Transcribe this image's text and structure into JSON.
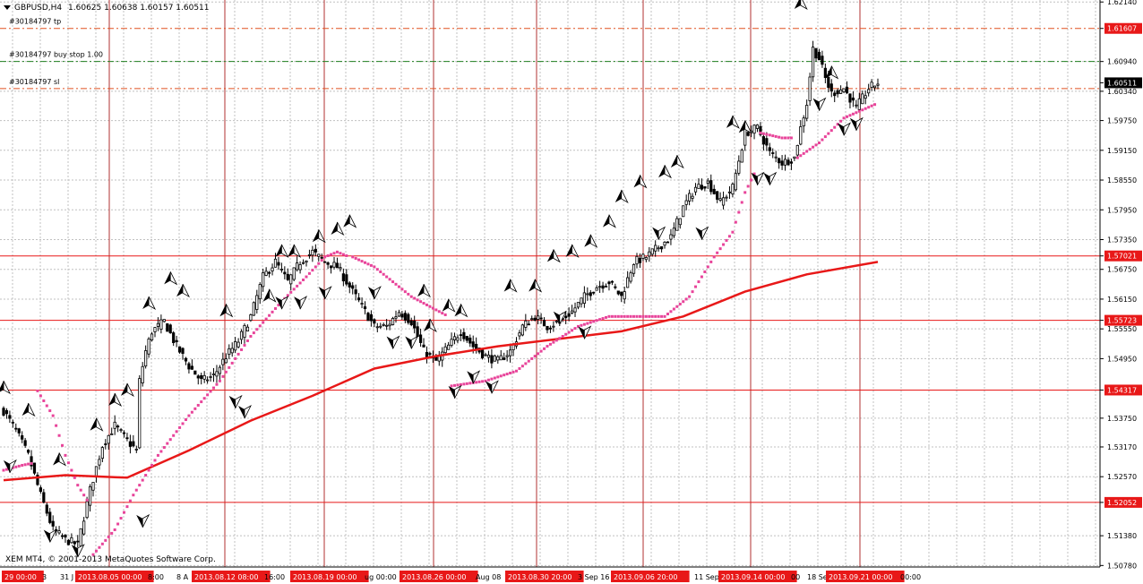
{
  "window": {
    "symbol": "GBPUSD,H4",
    "ohlc": "1.60625 1.60638 1.60157 1.60511",
    "copyright": "XEM MT4, © 2001-2013 MetaQuotes Software Corp."
  },
  "colors": {
    "background": "#ffffff",
    "grid": "#c0c0c0",
    "candle": "#000000",
    "ma": "#e81818",
    "sar": "#e8449a",
    "level_line": "#e81818",
    "vertical_marker": "#b03030",
    "tag_bg": "#e81818",
    "tp_line": "#e05020",
    "buy_line": "#208020",
    "sl_line": "#e05020",
    "price_tag_bg": "#000000"
  },
  "orders": [
    {
      "label": "#30184797 tp",
      "price": 1.61607,
      "style": "tp"
    },
    {
      "label": "#30184797 buy stop 1.00",
      "price": 1.6094,
      "style": "buy"
    },
    {
      "label": "#30184797 sl",
      "price": 1.60395,
      "style": "sl"
    }
  ],
  "chart_data": {
    "type": "candlestick",
    "y_ticks": [
      "1.62140",
      "1.61607",
      "1.60940",
      "1.60511",
      "1.60340",
      "1.59750",
      "1.59150",
      "1.58550",
      "1.57950",
      "1.57350",
      "1.57021",
      "1.56750",
      "1.56150",
      "1.55723",
      "1.55550",
      "1.54950",
      "1.54317",
      "1.53750",
      "1.53170",
      "1.52570",
      "1.52052",
      "1.51380",
      "1.50780"
    ],
    "ylim": [
      1.5075,
      1.6218
    ],
    "current_price": 1.60511,
    "highlight_prices": [
      1.61607,
      1.60511,
      1.57021,
      1.55723,
      1.54317,
      1.52052
    ],
    "level_lines": [
      1.57021,
      1.55723,
      1.54317,
      1.52052
    ],
    "x_labels": [
      {
        "text": "29 00:00",
        "highlight": true
      },
      {
        "text": "3",
        "highlight": false
      },
      {
        "text": "31 J",
        "highlight": false
      },
      {
        "text": "2013.08.05 00:00",
        "highlight": true
      },
      {
        "text": "8:00",
        "highlight": false
      },
      {
        "text": "8 A",
        "highlight": false
      },
      {
        "text": "2013.08.12 08:00",
        "highlight": true
      },
      {
        "text": "16:00",
        "highlight": false
      },
      {
        "text": "2013.08.19 00:00",
        "highlight": true
      },
      {
        "text": "ug 00:00",
        "highlight": false
      },
      {
        "text": "2013.08.26 00:00",
        "highlight": true
      },
      {
        "text": "Aug 08",
        "highlight": false
      },
      {
        "text": "2013.08.30 20:00",
        "highlight": true
      },
      {
        "text": "3 Sep 16",
        "highlight": false
      },
      {
        "text": "2013.09.06 20:00",
        "highlight": true
      },
      {
        "text": "11 Sep",
        "highlight": false
      },
      {
        "text": "2013.09.14 00:00",
        "highlight": true
      },
      {
        "text": "00",
        "highlight": false
      },
      {
        "text": "18 Se",
        "highlight": false
      },
      {
        "text": "2013.09.21 00:00",
        "highlight": true
      },
      {
        "text": "00:00",
        "highlight": false
      }
    ],
    "path_anchors": [
      [
        0,
        1.539
      ],
      [
        4,
        1.535
      ],
      [
        8,
        1.53
      ],
      [
        12,
        1.522
      ],
      [
        16,
        1.515
      ],
      [
        20,
        1.513
      ],
      [
        24,
        1.512
      ],
      [
        28,
        1.523
      ],
      [
        32,
        1.532
      ],
      [
        36,
        1.536
      ],
      [
        40,
        1.533
      ],
      [
        43,
        1.531
      ],
      [
        44,
        1.545
      ],
      [
        46,
        1.551
      ],
      [
        48,
        1.555
      ],
      [
        52,
        1.557
      ],
      [
        56,
        1.552
      ],
      [
        60,
        1.548
      ],
      [
        64,
        1.545
      ],
      [
        68,
        1.546
      ],
      [
        72,
        1.55
      ],
      [
        76,
        1.553
      ],
      [
        80,
        1.558
      ],
      [
        84,
        1.566
      ],
      [
        88,
        1.569
      ],
      [
        92,
        1.565
      ],
      [
        96,
        1.569
      ],
      [
        100,
        1.571
      ],
      [
        104,
        1.569
      ],
      [
        108,
        1.568
      ],
      [
        112,
        1.564
      ],
      [
        116,
        1.56
      ],
      [
        120,
        1.556
      ],
      [
        124,
        1.556
      ],
      [
        128,
        1.559
      ],
      [
        132,
        1.557
      ],
      [
        136,
        1.551
      ],
      [
        140,
        1.549
      ],
      [
        144,
        1.552
      ],
      [
        148,
        1.555
      ],
      [
        152,
        1.552
      ],
      [
        156,
        1.55
      ],
      [
        160,
        1.549
      ],
      [
        164,
        1.551
      ],
      [
        168,
        1.556
      ],
      [
        172,
        1.558
      ],
      [
        176,
        1.556
      ],
      [
        180,
        1.557
      ],
      [
        184,
        1.559
      ],
      [
        188,
        1.562
      ],
      [
        192,
        1.564
      ],
      [
        196,
        1.565
      ],
      [
        200,
        1.562
      ],
      [
        204,
        1.569
      ],
      [
        208,
        1.57
      ],
      [
        212,
        1.572
      ],
      [
        216,
        1.574
      ],
      [
        220,
        1.58
      ],
      [
        224,
        1.584
      ],
      [
        228,
        1.585
      ],
      [
        232,
        1.581
      ],
      [
        236,
        1.584
      ],
      [
        240,
        1.595
      ],
      [
        244,
        1.596
      ],
      [
        248,
        1.591
      ],
      [
        252,
        1.589
      ],
      [
        256,
        1.59
      ],
      [
        258,
        1.596
      ],
      [
        260,
        1.601
      ],
      [
        262,
        1.612
      ],
      [
        264,
        1.61
      ],
      [
        266,
        1.606
      ],
      [
        268,
        1.603
      ],
      [
        272,
        1.604
      ],
      [
        276,
        1.6
      ],
      [
        280,
        1.604
      ],
      [
        283,
        1.6051
      ]
    ],
    "ma_anchors": [
      [
        0,
        1.525
      ],
      [
        20,
        1.526
      ],
      [
        40,
        1.5255
      ],
      [
        60,
        1.531
      ],
      [
        80,
        1.537
      ],
      [
        100,
        1.542
      ],
      [
        120,
        1.5475
      ],
      [
        140,
        1.55
      ],
      [
        160,
        1.552
      ],
      [
        180,
        1.5535
      ],
      [
        200,
        1.555
      ],
      [
        220,
        1.558
      ],
      [
        240,
        1.563
      ],
      [
        260,
        1.5665
      ],
      [
        283,
        1.569
      ]
    ],
    "sar_segments": [
      {
        "dir": "below",
        "points": [
          [
            0,
            1.527
          ],
          [
            6,
            1.528
          ],
          [
            10,
            1.5285
          ]
        ]
      },
      {
        "dir": "above",
        "points": [
          [
            11,
            1.543
          ],
          [
            16,
            1.538
          ],
          [
            20,
            1.53
          ],
          [
            24,
            1.524
          ],
          [
            28,
            1.52
          ]
        ]
      },
      {
        "dir": "below",
        "points": [
          [
            29,
            1.51
          ],
          [
            36,
            1.515
          ],
          [
            42,
            1.522
          ],
          [
            50,
            1.53
          ],
          [
            60,
            1.538
          ],
          [
            70,
            1.545
          ],
          [
            80,
            1.554
          ],
          [
            90,
            1.561
          ],
          [
            98,
            1.566
          ],
          [
            104,
            1.57
          ],
          [
            108,
            1.571
          ],
          [
            112,
            1.57
          ]
        ]
      },
      {
        "dir": "above",
        "points": [
          [
            113,
            1.57
          ],
          [
            120,
            1.568
          ],
          [
            126,
            1.565
          ],
          [
            132,
            1.562
          ],
          [
            138,
            1.56
          ],
          [
            144,
            1.558
          ]
        ]
      },
      {
        "dir": "below",
        "points": [
          [
            145,
            1.544
          ],
          [
            156,
            1.545
          ],
          [
            166,
            1.547
          ],
          [
            176,
            1.552
          ],
          [
            186,
            1.556
          ],
          [
            196,
            1.558
          ],
          [
            206,
            1.558
          ],
          [
            214,
            1.558
          ],
          [
            222,
            1.562
          ],
          [
            230,
            1.57
          ],
          [
            236,
            1.575
          ],
          [
            240,
            1.583
          ],
          [
            244,
            1.588
          ]
        ]
      },
      {
        "dir": "above",
        "points": [
          [
            245,
            1.595
          ],
          [
            252,
            1.594
          ],
          [
            256,
            1.594
          ]
        ]
      },
      {
        "dir": "below",
        "points": [
          [
            257,
            1.59
          ],
          [
            264,
            1.593
          ],
          [
            272,
            1.598
          ],
          [
            283,
            1.601
          ]
        ]
      }
    ],
    "fractals": [
      [
        0,
        1.5425,
        "up"
      ],
      [
        8,
        1.538,
        "up"
      ],
      [
        2,
        1.529,
        "down"
      ],
      [
        15,
        1.515,
        "down"
      ],
      [
        18,
        1.528,
        "up"
      ],
      [
        24,
        1.512,
        "down"
      ],
      [
        30,
        1.535,
        "up"
      ],
      [
        36,
        1.54,
        "up"
      ],
      [
        40,
        1.542,
        "up"
      ],
      [
        45,
        1.518,
        "down"
      ],
      [
        47,
        1.5595,
        "up"
      ],
      [
        54,
        1.5645,
        "up"
      ],
      [
        58,
        1.562,
        "up"
      ],
      [
        72,
        1.558,
        "up"
      ],
      [
        75,
        1.542,
        "down"
      ],
      [
        78,
        1.54,
        "down"
      ],
      [
        86,
        1.561,
        "up"
      ],
      [
        90,
        1.57,
        "up"
      ],
      [
        94,
        1.57,
        "up"
      ],
      [
        102,
        1.573,
        "up"
      ],
      [
        108,
        1.5745,
        "up"
      ],
      [
        90,
        1.562,
        "down"
      ],
      [
        96,
        1.562,
        "down"
      ],
      [
        104,
        1.564,
        "down"
      ],
      [
        112,
        1.576,
        "up"
      ],
      [
        120,
        1.564,
        "down"
      ],
      [
        126,
        1.554,
        "down"
      ],
      [
        132,
        1.554,
        "down"
      ],
      [
        136,
        1.562,
        "up"
      ],
      [
        138,
        1.555,
        "up"
      ],
      [
        144,
        1.559,
        "up"
      ],
      [
        148,
        1.558,
        "up"
      ],
      [
        146,
        1.544,
        "down"
      ],
      [
        152,
        1.547,
        "down"
      ],
      [
        158,
        1.545,
        "down"
      ],
      [
        164,
        1.563,
        "up"
      ],
      [
        172,
        1.563,
        "up"
      ],
      [
        178,
        1.569,
        "up"
      ],
      [
        184,
        1.57,
        "up"
      ],
      [
        190,
        1.572,
        "up"
      ],
      [
        180,
        1.559,
        "down"
      ],
      [
        188,
        1.556,
        "down"
      ],
      [
        196,
        1.576,
        "up"
      ],
      [
        200,
        1.581,
        "up"
      ],
      [
        206,
        1.584,
        "up"
      ],
      [
        214,
        1.586,
        "up"
      ],
      [
        218,
        1.588,
        "up"
      ],
      [
        212,
        1.576,
        "down"
      ],
      [
        226,
        1.576,
        "down"
      ],
      [
        236,
        1.596,
        "up"
      ],
      [
        240,
        1.595,
        "up"
      ],
      [
        244,
        1.587,
        "down"
      ],
      [
        248,
        1.587,
        "down"
      ],
      [
        258,
        1.62,
        "up"
      ],
      [
        264,
        1.602,
        "down"
      ],
      [
        268,
        1.606,
        "up"
      ],
      [
        272,
        1.597,
        "down"
      ],
      [
        276,
        1.598,
        "down"
      ]
    ]
  }
}
